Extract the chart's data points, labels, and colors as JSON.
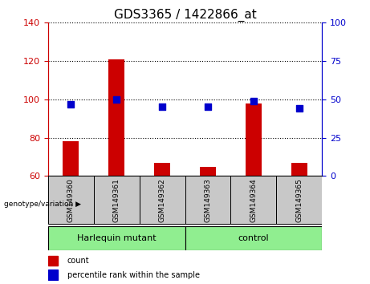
{
  "title": "GDS3365 / 1422866_at",
  "samples": [
    "GSM149360",
    "GSM149361",
    "GSM149362",
    "GSM149363",
    "GSM149364",
    "GSM149365"
  ],
  "count_values": [
    78,
    121,
    67,
    65,
    98,
    67
  ],
  "percentile_values": [
    47,
    50,
    45,
    45,
    49,
    44
  ],
  "ylim_left": [
    60,
    140
  ],
  "yticks_left": [
    60,
    80,
    100,
    120,
    140
  ],
  "ylim_right": [
    0,
    100
  ],
  "yticks_right": [
    0,
    25,
    50,
    75,
    100
  ],
  "groups_def": [
    {
      "label": "Harlequin mutant",
      "start": 0,
      "end": 2
    },
    {
      "label": "control",
      "start": 3,
      "end": 5
    }
  ],
  "group_label": "genotype/variation",
  "count_color": "#CC0000",
  "percentile_color": "#0000CC",
  "bar_width": 0.35,
  "bg_color": "#FFFFFF",
  "tick_label_area_color": "#C8C8C8",
  "group_area_color": "#90EE90",
  "legend_count_label": "count",
  "legend_percentile_label": "percentile rank within the sample",
  "title_fontsize": 11,
  "tick_fontsize": 8,
  "sample_fontsize": 6.5,
  "group_fontsize": 8
}
